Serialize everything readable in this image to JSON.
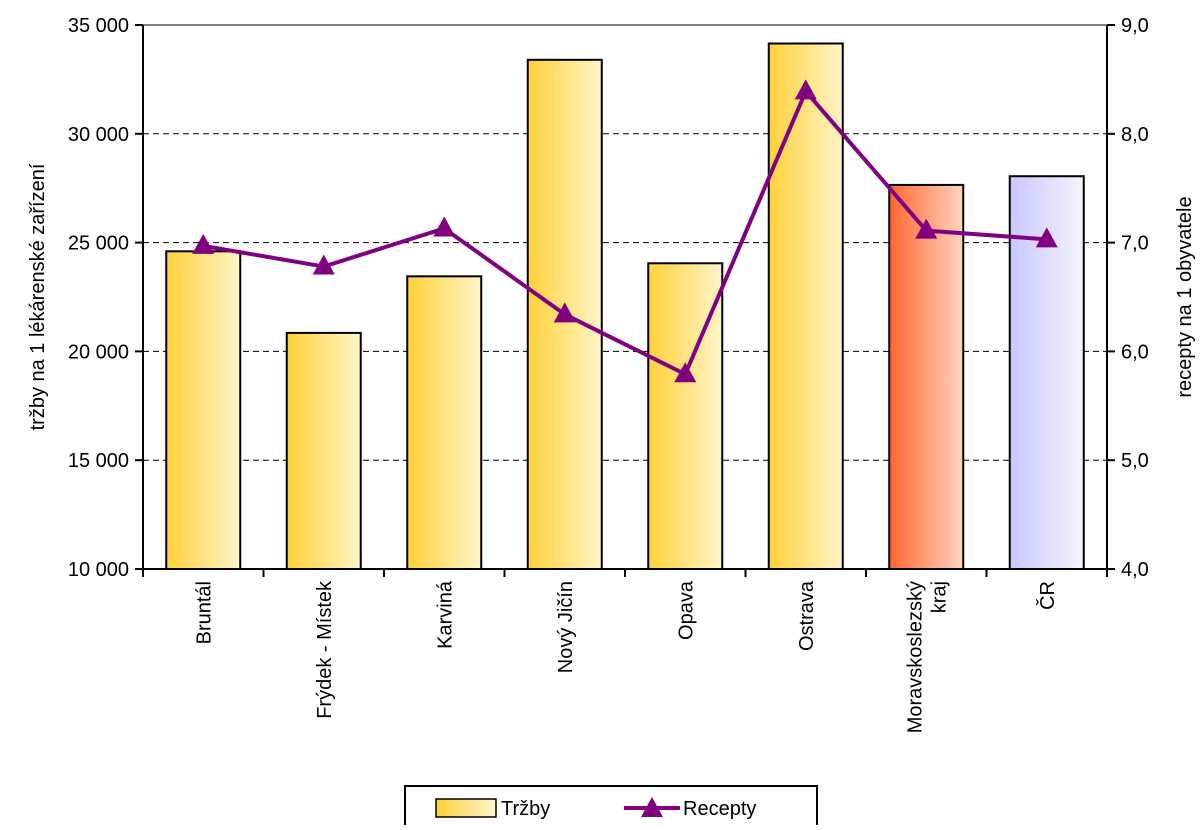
{
  "colors": {
    "bar_default_from": "#ffd13a",
    "bar_default_to": "#fff4c8",
    "bar_region_from": "#ff6630",
    "bar_region_to": "#ffd6c2",
    "bar_cr_from": "#c8c8ff",
    "bar_cr_to": "#f4f4ff",
    "line": "#800080",
    "grid": "#000000"
  },
  "chart_data": {
    "type": "bar",
    "combo": "bar+line",
    "categories": [
      "Bruntál",
      "Frýdek - Místek",
      "Karviná",
      "Nový Jičín",
      "Opava",
      "Ostrava",
      "Moravskoslezský kraj",
      "ČR"
    ],
    "category_lines": [
      [
        "Bruntál"
      ],
      [
        "Frýdek - Místek"
      ],
      [
        "Karviná"
      ],
      [
        "Nový Jičín"
      ],
      [
        "Opava"
      ],
      [
        "Ostrava"
      ],
      [
        "Moravskoslezský",
        "kraj"
      ],
      [
        "ČR"
      ]
    ],
    "series": [
      {
        "name": "Tržby",
        "type": "bar",
        "axis": "left",
        "values": [
          24600,
          20850,
          23450,
          33400,
          24050,
          34150,
          27650,
          28050
        ]
      },
      {
        "name": "Recepty",
        "type": "line",
        "axis": "right",
        "marker": "triangle",
        "values": [
          6.97,
          6.78,
          7.13,
          6.34,
          5.79,
          8.39,
          7.11,
          7.03
        ]
      }
    ],
    "ylabel": "tržby na 1 lékárenské zařízení",
    "y2label": "recepty na 1 obyvatele",
    "ylim": [
      10000,
      35000
    ],
    "y2lim": [
      4.0,
      9.0
    ],
    "yticks": [
      "10 000",
      "15 000",
      "20 000",
      "25 000",
      "30 000",
      "35 000"
    ],
    "y2ticks": [
      "4,0",
      "5,0",
      "6,0",
      "7,0",
      "8,0",
      "9,0"
    ],
    "grid": "horizontal dashed",
    "legend": "bottom-center"
  }
}
